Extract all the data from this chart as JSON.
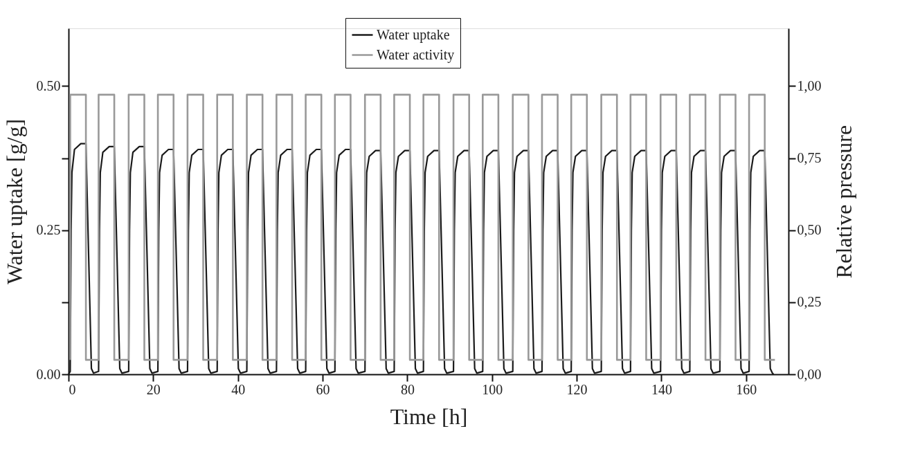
{
  "chart_data": {
    "type": "line",
    "xlabel": "Time [h]",
    "ylabel": "Water uptake [g/g]",
    "y2label": "Relative pressure",
    "xlim": [
      0,
      170
    ],
    "xticks": [
      0,
      20,
      40,
      60,
      80,
      100,
      120,
      140,
      160
    ],
    "ylim": [
      0,
      0.6
    ],
    "yticks": [
      {
        "value": 0,
        "label": "0.00"
      },
      {
        "value": 0.125,
        "label": null
      },
      0.25,
      {
        "value": 0.375,
        "label": null
      },
      {
        "value": 0.5,
        "label": "0.50"
      }
    ],
    "y2lim": [
      0,
      1.2
    ],
    "y2ticks": [
      {
        "value": 0,
        "label": "0,00"
      },
      {
        "value": 0.25,
        "label": "0,25"
      },
      {
        "value": 0.5,
        "label": "0,50"
      },
      {
        "value": 0.75,
        "label": "0,75"
      },
      {
        "value": 1,
        "label": "1,00"
      }
    ],
    "grid": false,
    "legend": "top",
    "marker": "none",
    "line_style": "solid",
    "series": [
      {
        "name": "Water uptake",
        "color": "#1a1a1a",
        "axis": "y",
        "x": [
          0,
          0.4,
          0.6,
          0.8,
          1.4,
          2.9,
          4.1,
          5.4,
          5.9,
          7.1,
          7.3,
          7.5,
          8.1,
          9.6,
          10.8,
          12.1,
          12.6,
          14.2,
          14.4,
          14.6,
          15.2,
          16.7,
          17.9,
          19.2,
          19.7,
          21.1,
          21.3,
          21.5,
          22.1,
          23.6,
          24.8,
          26.1,
          26.6,
          28.1,
          28.3,
          28.5,
          29.1,
          30.6,
          31.8,
          33.1,
          33.6,
          35.1,
          35.3,
          35.5,
          36.1,
          37.6,
          38.8,
          40.1,
          40.6,
          42.1,
          42.3,
          42.5,
          43.1,
          44.6,
          45.8,
          47.1,
          47.6,
          49.1,
          49.3,
          49.5,
          50.1,
          51.6,
          52.8,
          54.1,
          54.6,
          56.0,
          56.2,
          56.4,
          57.0,
          58.5,
          59.7,
          61.0,
          61.5,
          62.9,
          63.1,
          63.3,
          63.9,
          65.4,
          66.6,
          67.9,
          68.4,
          70.0,
          70.2,
          70.4,
          71.0,
          72.5,
          73.7,
          75.0,
          75.5,
          76.9,
          77.1,
          77.3,
          77.9,
          79.4,
          80.6,
          81.9,
          82.4,
          83.8,
          84.0,
          84.2,
          84.8,
          86.3,
          87.5,
          88.8,
          89.3,
          90.9,
          91.1,
          91.3,
          91.9,
          93.4,
          94.6,
          95.9,
          96.4,
          97.8,
          98.0,
          98.2,
          98.8,
          100.3,
          101.5,
          102.8,
          103.3,
          104.9,
          105.1,
          105.3,
          105.9,
          107.4,
          108.6,
          109.9,
          110.4,
          111.8,
          112.0,
          112.2,
          112.8,
          114.3,
          115.5,
          116.8,
          117.3,
          118.7,
          118.9,
          119.1,
          119.7,
          121.2,
          122.4,
          123.7,
          124.2,
          125.8,
          126.0,
          126.2,
          126.8,
          128.3,
          129.5,
          130.8,
          131.3,
          132.7,
          132.9,
          133.1,
          133.7,
          135.2,
          136.4,
          137.7,
          138.2,
          139.8,
          140.0,
          140.2,
          140.8,
          142.3,
          143.5,
          144.8,
          145.3,
          146.7,
          146.9,
          147.1,
          147.7,
          149.2,
          150.4,
          151.7,
          152.2,
          153.8,
          154.0,
          154.2,
          154.8,
          156.3,
          157.5,
          158.8,
          159.3,
          160.7,
          160.9,
          161.1,
          161.7,
          163.2,
          164.4,
          165.7,
          166.2,
          166.5
        ],
        "values": [
          0,
          0.005,
          0.25,
          0.35,
          0.39,
          0.4,
          0.4,
          0.01,
          0.002,
          0.005,
          0.25,
          0.35,
          0.385,
          0.395,
          0.395,
          0.01,
          0.002,
          0.005,
          0.25,
          0.35,
          0.385,
          0.395,
          0.395,
          0.01,
          0.002,
          0.005,
          0.25,
          0.35,
          0.38,
          0.39,
          0.39,
          0.01,
          0.002,
          0.005,
          0.25,
          0.35,
          0.38,
          0.39,
          0.39,
          0.01,
          0.002,
          0.005,
          0.25,
          0.35,
          0.38,
          0.39,
          0.39,
          0.01,
          0.002,
          0.005,
          0.25,
          0.35,
          0.38,
          0.39,
          0.39,
          0.01,
          0.002,
          0.005,
          0.25,
          0.35,
          0.38,
          0.39,
          0.39,
          0.01,
          0.002,
          0.005,
          0.25,
          0.35,
          0.38,
          0.39,
          0.39,
          0.01,
          0.002,
          0.005,
          0.25,
          0.35,
          0.38,
          0.39,
          0.39,
          0.01,
          0.002,
          0.005,
          0.25,
          0.35,
          0.378,
          0.388,
          0.388,
          0.01,
          0.002,
          0.005,
          0.25,
          0.35,
          0.378,
          0.388,
          0.388,
          0.01,
          0.002,
          0.005,
          0.25,
          0.35,
          0.378,
          0.388,
          0.388,
          0.01,
          0.002,
          0.005,
          0.25,
          0.35,
          0.378,
          0.388,
          0.388,
          0.01,
          0.002,
          0.005,
          0.25,
          0.35,
          0.378,
          0.388,
          0.388,
          0.01,
          0.002,
          0.005,
          0.25,
          0.35,
          0.378,
          0.388,
          0.388,
          0.01,
          0.002,
          0.005,
          0.25,
          0.35,
          0.378,
          0.388,
          0.388,
          0.01,
          0.002,
          0.005,
          0.25,
          0.35,
          0.378,
          0.388,
          0.388,
          0.01,
          0.002,
          0.005,
          0.25,
          0.35,
          0.378,
          0.388,
          0.388,
          0.01,
          0.002,
          0.005,
          0.25,
          0.35,
          0.378,
          0.388,
          0.388,
          0.01,
          0.002,
          0.005,
          0.25,
          0.35,
          0.378,
          0.388,
          0.388,
          0.01,
          0.002,
          0.005,
          0.25,
          0.35,
          0.378,
          0.388,
          0.388,
          0.01,
          0.002,
          0.005,
          0.25,
          0.35,
          0.378,
          0.388,
          0.388,
          0.01,
          0.002,
          0.005,
          0.25,
          0.35,
          0.378,
          0.388,
          0.388,
          0.01,
          0.002,
          0
        ]
      },
      {
        "name": "Water activity",
        "color": "#999999",
        "axis": "y2",
        "x": [
          0.4,
          0.4,
          4.1,
          4.1,
          7.1,
          7.1,
          10.8,
          10.8,
          14.2,
          14.2,
          17.9,
          17.9,
          21.1,
          21.1,
          24.8,
          24.8,
          28.1,
          28.1,
          31.8,
          31.8,
          35.1,
          35.1,
          38.8,
          38.8,
          42.1,
          42.1,
          45.8,
          45.8,
          49.1,
          49.1,
          52.8,
          52.8,
          56.0,
          56.0,
          59.7,
          59.7,
          62.9,
          62.9,
          66.6,
          66.6,
          70.0,
          70.0,
          73.7,
          73.7,
          76.9,
          76.9,
          80.6,
          80.6,
          83.8,
          83.8,
          87.5,
          87.5,
          90.9,
          90.9,
          94.6,
          94.6,
          97.8,
          97.8,
          101.5,
          101.5,
          104.9,
          104.9,
          108.6,
          108.6,
          111.8,
          111.8,
          115.5,
          115.5,
          118.7,
          118.7,
          122.4,
          122.4,
          125.8,
          125.8,
          129.5,
          129.5,
          132.7,
          132.7,
          136.4,
          136.4,
          139.8,
          139.8,
          143.5,
          143.5,
          146.7,
          146.7,
          150.4,
          150.4,
          153.8,
          153.8,
          157.5,
          157.5,
          160.7,
          160.7,
          164.4,
          164.4,
          166.8
        ],
        "values": [
          0.05,
          0.97,
          0.97,
          0.05,
          0.05,
          0.97,
          0.97,
          0.05,
          0.05,
          0.97,
          0.97,
          0.05,
          0.05,
          0.97,
          0.97,
          0.05,
          0.05,
          0.97,
          0.97,
          0.05,
          0.05,
          0.97,
          0.97,
          0.05,
          0.05,
          0.97,
          0.97,
          0.05,
          0.05,
          0.97,
          0.97,
          0.05,
          0.05,
          0.97,
          0.97,
          0.05,
          0.05,
          0.97,
          0.97,
          0.05,
          0.05,
          0.97,
          0.97,
          0.05,
          0.05,
          0.97,
          0.97,
          0.05,
          0.05,
          0.97,
          0.97,
          0.05,
          0.05,
          0.97,
          0.97,
          0.05,
          0.05,
          0.97,
          0.97,
          0.05,
          0.05,
          0.97,
          0.97,
          0.05,
          0.05,
          0.97,
          0.97,
          0.05,
          0.05,
          0.97,
          0.97,
          0.05,
          0.05,
          0.97,
          0.97,
          0.05,
          0.05,
          0.97,
          0.97,
          0.05,
          0.05,
          0.97,
          0.97,
          0.05,
          0.05,
          0.97,
          0.97,
          0.05,
          0.05,
          0.97,
          0.97,
          0.05,
          0.05,
          0.97,
          0.97,
          0.05,
          0.05
        ]
      }
    ]
  }
}
